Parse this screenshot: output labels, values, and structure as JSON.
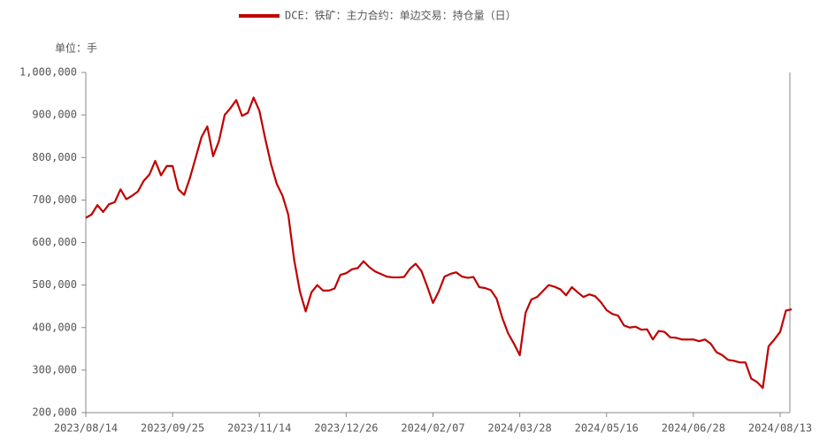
{
  "chart_data": {
    "type": "line",
    "legend": "DCE：铁矿：主力合约：单边交易：持仓量（日）",
    "unit_label": "单位：手",
    "categories": [
      "2023/08/14",
      null,
      null,
      null,
      null,
      null,
      null,
      null,
      null,
      null,
      null,
      null,
      null,
      null,
      null,
      "2023/09/25",
      null,
      null,
      null,
      null,
      null,
      null,
      null,
      null,
      null,
      null,
      null,
      null,
      null,
      null,
      "2023/11/14",
      null,
      null,
      null,
      null,
      null,
      null,
      null,
      null,
      null,
      null,
      null,
      null,
      null,
      null,
      "2023/12/26",
      null,
      null,
      null,
      null,
      null,
      null,
      null,
      null,
      null,
      null,
      null,
      null,
      null,
      null,
      "2024/02/07",
      null,
      null,
      null,
      null,
      null,
      null,
      null,
      null,
      null,
      null,
      null,
      null,
      null,
      null,
      "2024/03/28",
      null,
      null,
      null,
      null,
      null,
      null,
      null,
      null,
      null,
      null,
      null,
      null,
      null,
      null,
      "2024/05/16",
      null,
      null,
      null,
      null,
      null,
      null,
      null,
      null,
      null,
      null,
      null,
      null,
      null,
      null,
      "2024/06/28",
      null,
      null,
      null,
      null,
      null,
      null,
      null,
      null,
      null,
      null,
      null,
      null,
      null,
      null,
      "2024/08/13",
      null,
      null
    ],
    "series": [
      {
        "name": "DCE：铁矿：主力合约：单边交易：持仓量（日）",
        "color": "#c00000",
        "values": [
          658000,
          666000,
          688000,
          672000,
          690000,
          695000,
          725000,
          702000,
          710000,
          720000,
          745000,
          760000,
          792000,
          758000,
          780000,
          780000,
          725000,
          712000,
          752000,
          800000,
          848000,
          873000,
          803000,
          838000,
          900000,
          916000,
          935000,
          898000,
          905000,
          941000,
          910000,
          845000,
          785000,
          738000,
          710000,
          665000,
          560000,
          485000,
          438000,
          483000,
          500000,
          487000,
          487000,
          492000,
          524000,
          528000,
          537000,
          540000,
          556000,
          542000,
          532000,
          526000,
          520000,
          518000,
          518000,
          519000,
          538000,
          550000,
          533000,
          497000,
          458000,
          485000,
          520000,
          526000,
          530000,
          520000,
          517000,
          519000,
          495000,
          493000,
          488000,
          468000,
          422000,
          386000,
          362000,
          335000,
          435000,
          466000,
          472000,
          486000,
          500000,
          496000,
          490000,
          476000,
          495000,
          483000,
          472000,
          478000,
          474000,
          460000,
          441000,
          432000,
          428000,
          405000,
          400000,
          402000,
          395000,
          396000,
          372000,
          392000,
          390000,
          377000,
          376000,
          372000,
          372000,
          372000,
          368000,
          372000,
          362000,
          342000,
          335000,
          324000,
          322000,
          318000,
          318000,
          280000,
          272000,
          258000,
          356000,
          372000,
          390000,
          440000,
          443000
        ]
      }
    ],
    "ylim": [
      200000,
      1000000
    ],
    "yticks": [
      {
        "value": 200000,
        "label": "200,000"
      },
      {
        "value": 300000,
        "label": "300,000"
      },
      {
        "value": 400000,
        "label": "400,000"
      },
      {
        "value": 500000,
        "label": "500,000"
      },
      {
        "value": 600000,
        "label": "600,000"
      },
      {
        "value": 700000,
        "label": "700,000"
      },
      {
        "value": 800000,
        "label": "800,000"
      },
      {
        "value": 900000,
        "label": "900,000"
      },
      {
        "value": 1000000,
        "label": "1,000,000"
      }
    ]
  }
}
